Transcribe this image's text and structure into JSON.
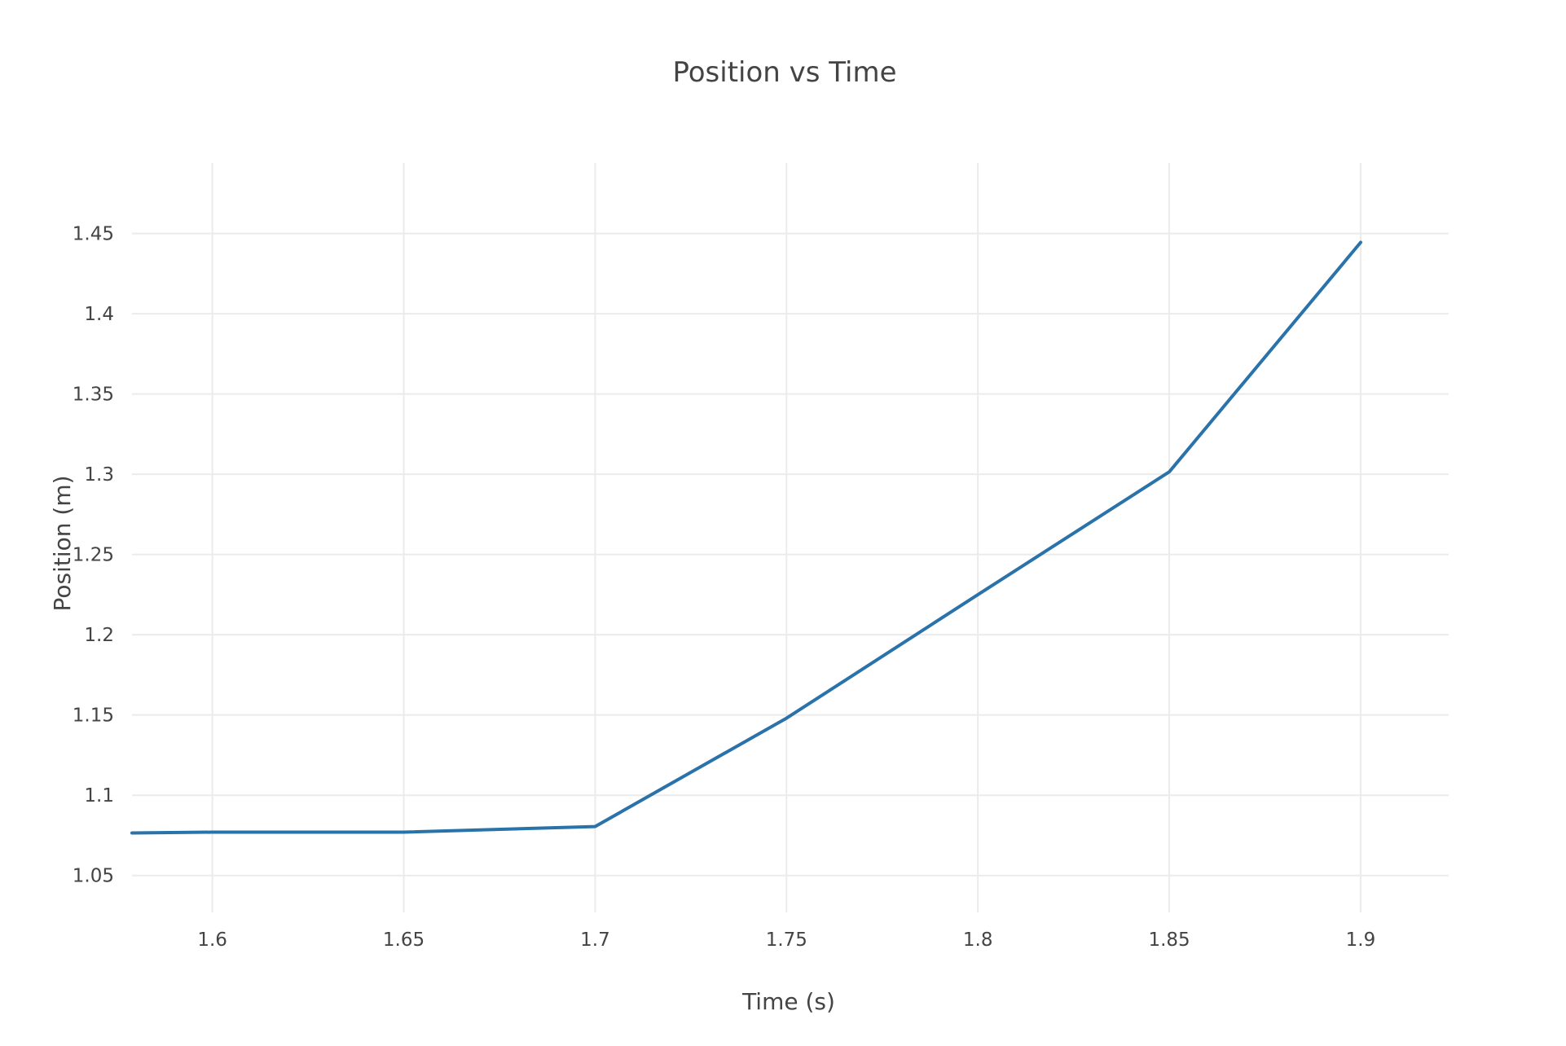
{
  "chart_data": {
    "type": "line",
    "title": "Position vs Time",
    "xlabel": "Time (s)",
    "ylabel": "Position (m)",
    "xlim": [
      1.579,
      1.923
    ],
    "ylim": [
      1.027,
      1.494
    ],
    "xticks": [
      {
        "value": 1.6,
        "label": "1.6"
      },
      {
        "value": 1.65,
        "label": "1.65"
      },
      {
        "value": 1.7,
        "label": "1.7"
      },
      {
        "value": 1.75,
        "label": "1.75"
      },
      {
        "value": 1.8,
        "label": "1.8"
      },
      {
        "value": 1.85,
        "label": "1.85"
      },
      {
        "value": 1.9,
        "label": "1.9"
      }
    ],
    "yticks": [
      {
        "value": 1.05,
        "label": "1.05"
      },
      {
        "value": 1.1,
        "label": "1.1"
      },
      {
        "value": 1.15,
        "label": "1.15"
      },
      {
        "value": 1.2,
        "label": "1.2"
      },
      {
        "value": 1.25,
        "label": "1.25"
      },
      {
        "value": 1.3,
        "label": "1.3"
      },
      {
        "value": 1.35,
        "label": "1.35"
      },
      {
        "value": 1.4,
        "label": "1.4"
      },
      {
        "value": 1.45,
        "label": "1.45"
      }
    ],
    "grid": true,
    "series": [
      {
        "color": "#2a72aa",
        "x": [
          1.579,
          1.6,
          1.65,
          1.7,
          1.75,
          1.8,
          1.85,
          1.9
        ],
        "y": [
          1.0765,
          1.077,
          1.077,
          1.0805,
          1.148,
          1.225,
          1.3015,
          1.4445
        ]
      }
    ]
  }
}
